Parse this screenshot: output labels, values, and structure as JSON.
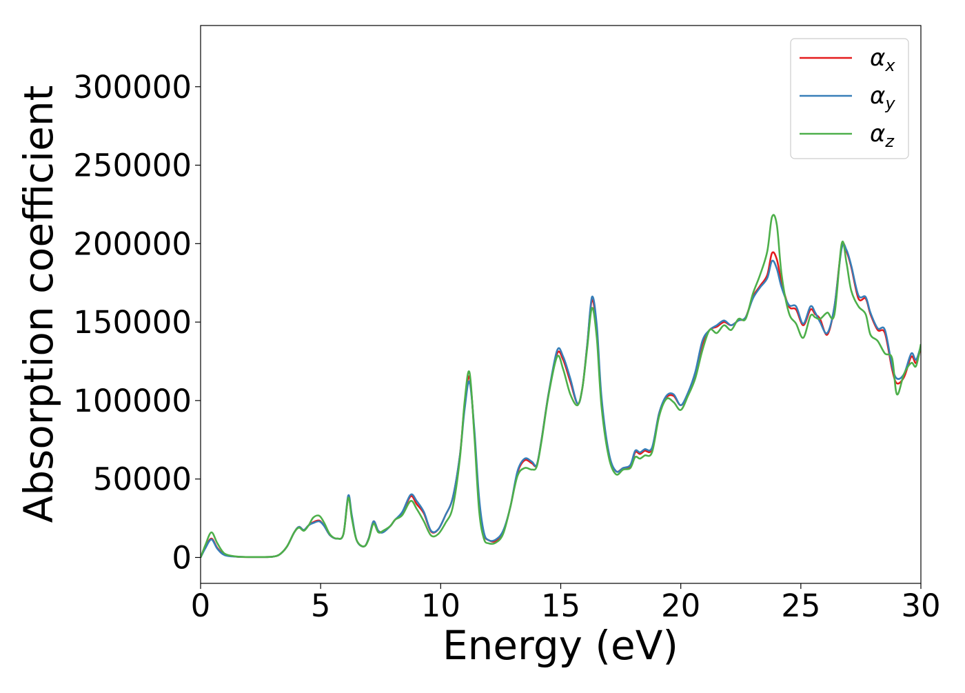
{
  "chart_data": {
    "type": "line",
    "xlabel": "Energy (eV)",
    "ylabel": "Absorption coefficient",
    "xlim": [
      0,
      30
    ],
    "ylim": [
      -16500,
      339000
    ],
    "xticks": [
      0,
      5,
      10,
      15,
      20,
      25,
      30
    ],
    "yticks": [
      0,
      50000,
      100000,
      150000,
      200000,
      250000,
      300000
    ],
    "xtick_labels": [
      "0",
      "5",
      "10",
      "15",
      "20",
      "25",
      "30"
    ],
    "ytick_labels": [
      "0",
      "50000",
      "100000",
      "150000",
      "200000",
      "250000",
      "300000"
    ],
    "grid": false,
    "legend_position": "top-right",
    "x": [
      0,
      0.2,
      0.45,
      0.7,
      1.0,
      1.5,
      2.0,
      2.5,
      3.0,
      3.3,
      3.6,
      3.9,
      4.1,
      4.3,
      4.5,
      4.7,
      4.95,
      5.15,
      5.4,
      5.7,
      5.95,
      6.15,
      6.3,
      6.5,
      6.8,
      7.0,
      7.2,
      7.4,
      7.6,
      7.9,
      8.1,
      8.4,
      8.75,
      9.0,
      9.3,
      9.6,
      9.9,
      10.2,
      10.5,
      10.8,
      11.0,
      11.2,
      11.4,
      11.6,
      11.8,
      12.0,
      12.3,
      12.6,
      12.9,
      13.2,
      13.5,
      13.8,
      14.0,
      14.2,
      14.5,
      14.85,
      15.1,
      15.4,
      15.7,
      15.9,
      16.1,
      16.3,
      16.5,
      16.7,
      17.0,
      17.3,
      17.6,
      17.9,
      18.1,
      18.3,
      18.5,
      18.8,
      19.1,
      19.4,
      19.7,
      20.0,
      20.3,
      20.6,
      20.9,
      21.2,
      21.5,
      21.8,
      22.1,
      22.4,
      22.7,
      23.0,
      23.3,
      23.6,
      23.8,
      24.0,
      24.2,
      24.5,
      24.8,
      25.1,
      25.4,
      25.6,
      25.8,
      26.1,
      26.4,
      26.7,
      26.9,
      27.1,
      27.4,
      27.7,
      27.9,
      28.2,
      28.5,
      28.8,
      29.0,
      29.3,
      29.6,
      29.8,
      30.0
    ],
    "series": [
      {
        "name": "α_x",
        "color": "#e41a1c",
        "values": [
          0,
          6500,
          12000,
          6000,
          1800,
          500,
          300,
          300,
          500,
          2000,
          7000,
          16000,
          19500,
          17500,
          20500,
          22500,
          23500,
          20000,
          14000,
          12000,
          15000,
          38000,
          26000,
          11000,
          7000,
          12000,
          23000,
          17000,
          16500,
          20000,
          24000,
          28000,
          39000,
          34000,
          28000,
          16500,
          18000,
          27000,
          38000,
          65000,
          98000,
          115000,
          80000,
          35000,
          15000,
          11000,
          10500,
          16000,
          32000,
          54000,
          62000,
          60000,
          59000,
          75000,
          105000,
          130000,
          126000,
          112000,
          98000,
          108000,
          135000,
          164000,
          145000,
          100000,
          66000,
          55000,
          57000,
          58000,
          67000,
          66000,
          68000,
          69000,
          92000,
          102000,
          103000,
          97000,
          104000,
          117000,
          136000,
          145000,
          147000,
          150000,
          148000,
          151000,
          153000,
          166000,
          173000,
          180000,
          194000,
          190000,
          175000,
          160000,
          158000,
          148000,
          158000,
          155000,
          152000,
          142000,
          160000,
          198000,
          195000,
          185000,
          165000,
          165000,
          155000,
          145000,
          143000,
          120000,
          111000,
          115000,
          128000,
          124000,
          134000
        ]
      },
      {
        "name": "α_y",
        "color": "#377eb8",
        "values": [
          0,
          6000,
          11500,
          5500,
          1500,
          500,
          300,
          300,
          500,
          2000,
          7000,
          16000,
          19500,
          17500,
          20500,
          22000,
          23000,
          20000,
          14000,
          12000,
          15000,
          39500,
          27000,
          11000,
          7000,
          12000,
          23000,
          17000,
          16000,
          20000,
          24000,
          29000,
          40000,
          36000,
          29000,
          17000,
          18000,
          27000,
          38000,
          65000,
          95000,
          112000,
          82000,
          38000,
          16000,
          11000,
          11500,
          17000,
          32000,
          55000,
          63000,
          61000,
          59000,
          75000,
          105000,
          132000,
          128000,
          114000,
          98000,
          108000,
          135000,
          166000,
          148000,
          102000,
          67000,
          55000,
          57000,
          59000,
          68000,
          67000,
          69000,
          70000,
          92000,
          103000,
          104000,
          97000,
          105000,
          118000,
          138000,
          145000,
          148000,
          151000,
          148000,
          151000,
          153000,
          165000,
          172000,
          178000,
          189000,
          184000,
          172000,
          161000,
          160000,
          149000,
          160000,
          156000,
          150000,
          143000,
          160000,
          197000,
          196000,
          186000,
          167000,
          166000,
          156000,
          146000,
          145000,
          122000,
          114000,
          117000,
          130000,
          126000,
          135000
        ]
      },
      {
        "name": "α_z",
        "color": "#4daf4a",
        "values": [
          0,
          8000,
          16000,
          9000,
          2500,
          600,
          300,
          300,
          500,
          2000,
          7000,
          16000,
          19000,
          17000,
          20500,
          25500,
          26500,
          22000,
          14500,
          12000,
          15000,
          38000,
          25000,
          11000,
          7000,
          11500,
          21500,
          16000,
          17000,
          20000,
          24000,
          27000,
          36000,
          31000,
          23000,
          14000,
          15000,
          22000,
          32000,
          63000,
          100000,
          118000,
          78000,
          30000,
          12000,
          9000,
          9500,
          15000,
          32000,
          52000,
          57000,
          56000,
          58000,
          74000,
          104000,
          128000,
          120000,
          104000,
          97000,
          108000,
          133000,
          159000,
          140000,
          96000,
          64000,
          53000,
          56000,
          57000,
          64000,
          63000,
          65000,
          67000,
          90000,
          101000,
          99000,
          94000,
          103000,
          114000,
          132000,
          145000,
          143000,
          148000,
          145000,
          152000,
          152000,
          168000,
          180000,
          195000,
          217000,
          212000,
          180000,
          156000,
          149000,
          140000,
          154000,
          153000,
          152000,
          156000,
          155000,
          200000,
          188000,
          170000,
          160000,
          155000,
          142000,
          138000,
          130000,
          127000,
          104000,
          117000,
          124000,
          122000,
          136000
        ]
      }
    ]
  },
  "legend": {
    "entries": [
      {
        "symbol": "α",
        "sub": "x",
        "color": "#e41a1c"
      },
      {
        "symbol": "α",
        "sub": "y",
        "color": "#377eb8"
      },
      {
        "symbol": "α",
        "sub": "z",
        "color": "#4daf4a"
      }
    ]
  }
}
